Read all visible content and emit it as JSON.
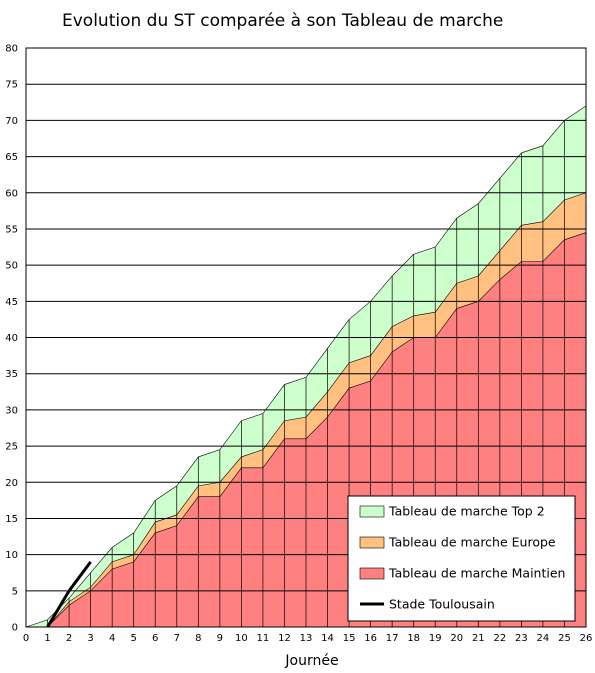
{
  "chart_data": {
    "type": "area",
    "title": "Evolution du ST comparée à son Tableau de marche",
    "xlabel": "Journée",
    "ylabel": "",
    "xlim": [
      0,
      26
    ],
    "ylim": [
      0,
      80
    ],
    "x_ticks": [
      0,
      1,
      2,
      3,
      4,
      5,
      6,
      7,
      8,
      9,
      10,
      11,
      12,
      13,
      14,
      15,
      16,
      17,
      18,
      19,
      20,
      21,
      22,
      23,
      24,
      25,
      26
    ],
    "y_ticks": [
      0,
      5,
      10,
      15,
      20,
      25,
      30,
      35,
      40,
      45,
      50,
      55,
      60,
      65,
      70,
      75,
      80
    ],
    "grid": "horizontal",
    "legend_position": "bottom-right",
    "x": [
      0,
      1,
      2,
      3,
      4,
      5,
      6,
      7,
      8,
      9,
      10,
      11,
      12,
      13,
      14,
      15,
      16,
      17,
      18,
      19,
      20,
      21,
      22,
      23,
      24,
      25,
      26
    ],
    "series": [
      {
        "name": "Tableau de marche Top 2",
        "kind": "area",
        "color": "#ccffcc",
        "values": [
          0,
          1,
          4,
          7.5,
          11,
          13,
          17.5,
          19.5,
          23.5,
          24.5,
          28.5,
          29.5,
          33.5,
          34.5,
          38.5,
          42.5,
          45,
          48.5,
          51.5,
          52.5,
          56.5,
          58.5,
          62,
          65.5,
          66.5,
          70,
          72
        ]
      },
      {
        "name": "Tableau de marche Europe",
        "kind": "area",
        "color": "#ffc080",
        "values": [
          0,
          0,
          3.5,
          5.5,
          9,
          10,
          14.5,
          15.5,
          19.5,
          20,
          23.5,
          24.5,
          28.5,
          29,
          32.5,
          36.5,
          37.5,
          41.5,
          43,
          43.5,
          47.5,
          48.5,
          52,
          55.5,
          56,
          59,
          60
        ]
      },
      {
        "name": "Tableau de marche Maintien",
        "kind": "area",
        "color": "#ff8080",
        "values": [
          0,
          0,
          3,
          5,
          8,
          9,
          13,
          14,
          18,
          18,
          22,
          22,
          26,
          26,
          29,
          33,
          34,
          38,
          40,
          40,
          44,
          45,
          48,
          50.5,
          50.5,
          53.5,
          54.5
        ]
      },
      {
        "name": "Stade Toulousain",
        "kind": "line",
        "color": "#000000",
        "x": [
          1,
          2,
          3
        ],
        "values": [
          0,
          5,
          9
        ]
      }
    ]
  }
}
